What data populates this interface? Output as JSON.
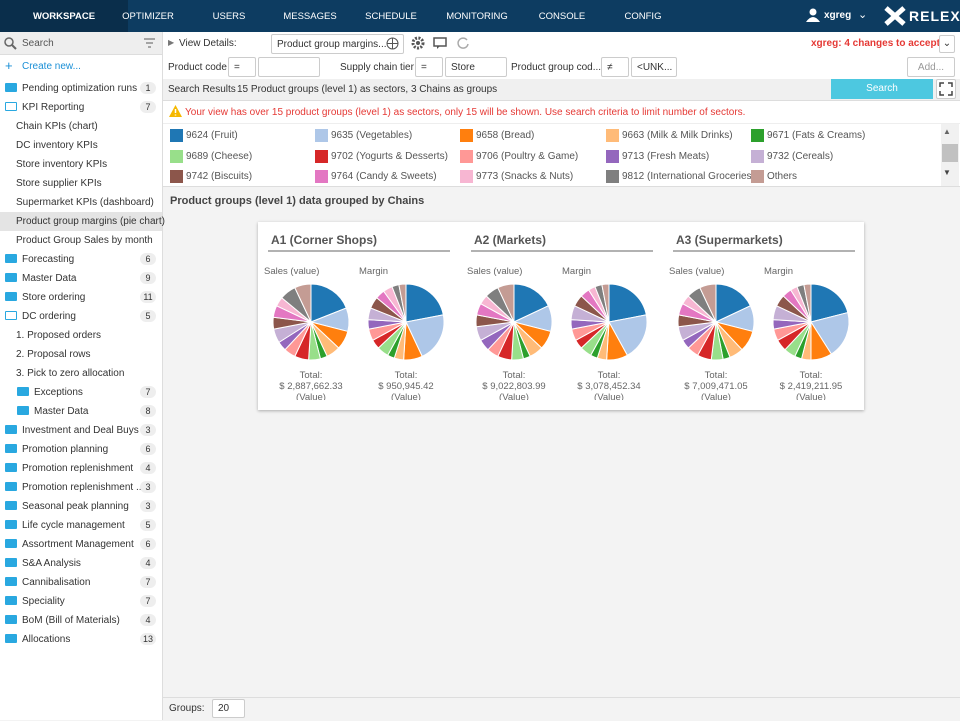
{
  "nav": {
    "tabs": [
      "WORKSPACE",
      "OPTIMIZER",
      "USERS",
      "MESSAGES",
      "SCHEDULE",
      "MONITORING",
      "CONSOLE",
      "CONFIG"
    ],
    "user": "xgreg",
    "logo": "RELEX"
  },
  "sidebar": {
    "search": "Search",
    "create_new": "Create new...",
    "tree": [
      {
        "label": "Pending optimization runs",
        "count": 1
      },
      {
        "label": "KPI Reporting",
        "count": 7,
        "children": [
          {
            "label": "Chain KPIs (chart)"
          },
          {
            "label": "DC inventory KPIs"
          },
          {
            "label": "Store inventory KPIs"
          },
          {
            "label": "Store supplier KPIs"
          },
          {
            "label": "Supermarket KPIs (dashboard)"
          },
          {
            "label": "Product group margins (pie chart)",
            "selected": true
          },
          {
            "label": "Product Group Sales by month"
          }
        ]
      },
      {
        "label": "Forecasting",
        "count": 6
      },
      {
        "label": "Master Data",
        "count": 9
      },
      {
        "label": "Store ordering",
        "count": 11
      },
      {
        "label": "DC ordering",
        "count": 5,
        "children": [
          {
            "label": "1. Proposed orders"
          },
          {
            "label": "2. Proposal rows"
          },
          {
            "label": "3. Pick to zero allocation"
          },
          {
            "label": "Exceptions",
            "count": 7
          },
          {
            "label": "Master Data",
            "count": 8
          }
        ]
      },
      {
        "label": "Investment and Deal Buys",
        "count": 3
      },
      {
        "label": "Promotion planning",
        "count": 6
      },
      {
        "label": "Promotion replenishment",
        "count": 4
      },
      {
        "label": "Promotion replenishment ...",
        "count": 3
      },
      {
        "label": "Seasonal peak planning",
        "count": 3
      },
      {
        "label": "Life cycle management",
        "count": 5
      },
      {
        "label": "Assortment Management",
        "count": 6
      },
      {
        "label": "S&A Analysis",
        "count": 4
      },
      {
        "label": "Cannibalisation",
        "count": 7
      },
      {
        "label": "Speciality",
        "count": 7
      },
      {
        "label": "BoM (Bill of Materials)",
        "count": 4
      },
      {
        "label": "Allocations",
        "count": 13
      }
    ]
  },
  "toolbar": {
    "view_details_label": "View Details:",
    "view_name": "Product group margins...",
    "changes": "xgreg: 4 changes to accept >"
  },
  "filters": {
    "items": [
      {
        "label": "Product code",
        "operator": "="
      },
      {
        "label": "Supply chain tier",
        "operator": "=",
        "value": "Store"
      },
      {
        "label": "Product group cod...",
        "operator": "≠",
        "value": "<UNK..."
      }
    ],
    "add": "Add..."
  },
  "results": {
    "label": "Search Results",
    "summary": "15 Product groups (level 1) as sectors, 3 Chains as groups",
    "search_button": "Search"
  },
  "warning": "Your view has over 15 product groups (level 1) as sectors, only 15 will be shown. Use search criteria to limit number of sectors.",
  "legend": {
    "items": [
      {
        "label": "9624 (Fruit)",
        "color": "#1f77b4"
      },
      {
        "label": "9635 (Vegetables)",
        "color": "#aec7e8"
      },
      {
        "label": "9658 (Bread)",
        "color": "#ff7f0e"
      },
      {
        "label": "9663 (Milk & Milk Drinks)",
        "color": "#ffbb78"
      },
      {
        "label": "9671 (Fats & Creams)",
        "color": "#2ca02c"
      },
      {
        "label": "9689 (Cheese)",
        "color": "#98df8a"
      },
      {
        "label": "9702 (Yogurts & Desserts)",
        "color": "#d62728"
      },
      {
        "label": "9706 (Poultry & Game)",
        "color": "#ff9896"
      },
      {
        "label": "9713 (Fresh Meats)",
        "color": "#9467bd"
      },
      {
        "label": "9732 (Cereals)",
        "color": "#c5b0d5"
      },
      {
        "label": "9742 (Biscuits)",
        "color": "#8c564b"
      },
      {
        "label": "9764 (Candy & Sweets)",
        "color": "#e377c2"
      },
      {
        "label": "9773 (Snacks & Nuts)",
        "color": "#f7b6d2"
      },
      {
        "label": "9812 (International Groceries)",
        "color": "#7f7f7f"
      },
      {
        "label": "Others",
        "color": "#c49c94"
      }
    ]
  },
  "section_title": "Product groups (level 1) data grouped by Chains",
  "groups": [
    {
      "title": "A1 (Corner Shops)",
      "pies": [
        {
          "label": "Sales (value)",
          "slices": [
            19,
            10,
            8,
            6,
            3,
            5,
            6,
            5,
            4,
            6,
            5,
            5,
            4,
            7,
            7
          ],
          "total_label": "Total:",
          "total_value": "$ 2,887,662.33",
          "total_unit": "(Value)"
        },
        {
          "label": "Margin",
          "slices": [
            22,
            21,
            8,
            4,
            3,
            5,
            4,
            5,
            4,
            5,
            5,
            4,
            4,
            3,
            3
          ],
          "total_label": "Total:",
          "total_value": "$ 950,945.42",
          "total_unit": "(Value)"
        }
      ]
    },
    {
      "title": "A2 (Markets)",
      "pies": [
        {
          "label": "Sales (value)",
          "slices": [
            18,
            11,
            8,
            6,
            3,
            5,
            6,
            5,
            5,
            6,
            5,
            5,
            4,
            6,
            7
          ],
          "total_label": "Total:",
          "total_value": "$ 9,022,803.99",
          "total_unit": "(Value)"
        },
        {
          "label": "Margin",
          "slices": [
            22,
            20,
            9,
            4,
            3,
            5,
            4,
            5,
            4,
            6,
            5,
            4,
            3,
            3,
            3
          ],
          "total_label": "Total:",
          "total_value": "$ 3,078,452.34",
          "total_unit": "(Value)"
        }
      ]
    },
    {
      "title": "A3 (Supermarkets)",
      "pies": [
        {
          "label": "Sales (value)",
          "slices": [
            18,
            11,
            9,
            6,
            3,
            5,
            6,
            5,
            4,
            6,
            5,
            5,
            4,
            6,
            7
          ],
          "total_label": "Total:",
          "total_value": "$ 7,009,471.05",
          "total_unit": "(Value)"
        },
        {
          "label": "Margin",
          "slices": [
            21,
            20,
            9,
            4,
            3,
            5,
            5,
            5,
            4,
            6,
            5,
            4,
            3,
            3,
            3
          ],
          "total_label": "Total:",
          "total_value": "$ 2,419,211.95",
          "total_unit": "(Value)"
        }
      ]
    }
  ],
  "footer": {
    "groups_label": "Groups:",
    "groups_value": 20
  }
}
